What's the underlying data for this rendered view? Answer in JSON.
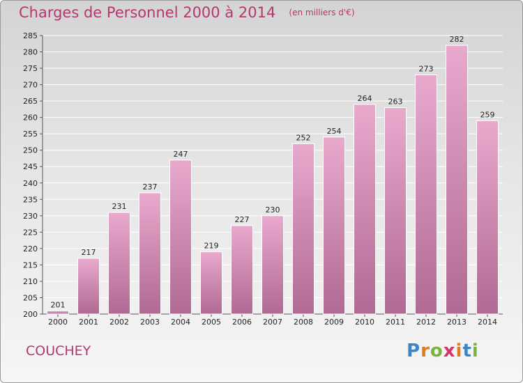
{
  "header": {
    "title": "Charges de Personnel 2000 à 2014",
    "subtitle": "(en milliers d'€)"
  },
  "footer": {
    "commune": "COUCHEY",
    "logo_text": "Proxiti",
    "logo_letter_colors": [
      "#3d86c6",
      "#e07b1e",
      "#7ab33f",
      "#d6336c",
      "#e07b1e",
      "#3d86c6",
      "#7ab33f"
    ]
  },
  "colors": {
    "title": "#b3386f",
    "bar_top": "#e9a9cd",
    "bar_bottom": "#b06a93",
    "grid": "#ffffff"
  },
  "chart_data": {
    "type": "bar",
    "title": "Charges de Personnel 2000 à 2014",
    "categories": [
      "2000",
      "2001",
      "2002",
      "2003",
      "2004",
      "2005",
      "2006",
      "2007",
      "2008",
      "2009",
      "2010",
      "2011",
      "2012",
      "2013",
      "2014"
    ],
    "values": [
      201,
      217,
      231,
      237,
      247,
      219,
      227,
      230,
      252,
      254,
      264,
      263,
      273,
      282,
      259
    ],
    "ylim": [
      200,
      285
    ],
    "yticks": [
      200,
      205,
      210,
      215,
      220,
      225,
      230,
      235,
      240,
      245,
      250,
      255,
      260,
      265,
      270,
      275,
      280,
      285
    ],
    "grid": true,
    "xlabel": "",
    "ylabel": ""
  }
}
